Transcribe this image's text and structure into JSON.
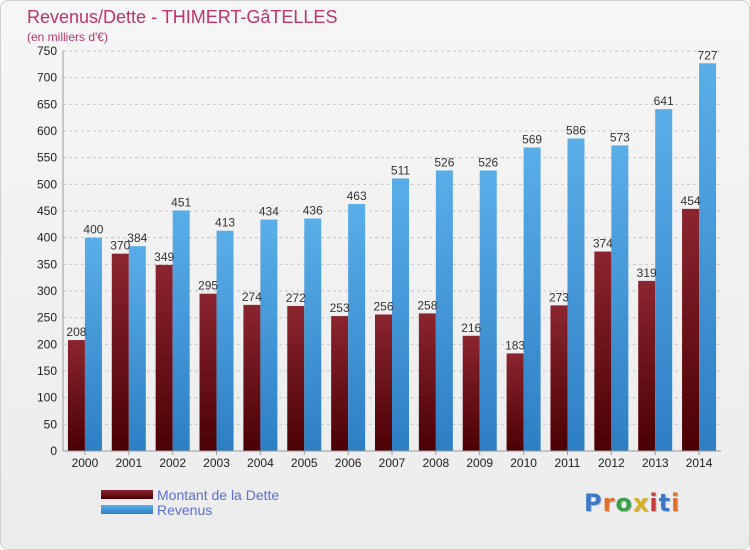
{
  "title": "Revenus/Dette - THIMERT-GâTELLES",
  "subtitle": "(en milliers d'€)",
  "brand": "Proxiti",
  "colors": {
    "dette_top": "#8b2530",
    "dette_bottom": "#4a0004",
    "revenus_top": "#5aaee8",
    "revenus_bottom": "#2e7ec4",
    "grid": "#c8c8c8",
    "title": "#c0336b",
    "legend_text": "#5a6fe0"
  },
  "chart_data": {
    "type": "bar",
    "categories": [
      "2000",
      "2001",
      "2002",
      "2003",
      "2004",
      "2005",
      "2006",
      "2007",
      "2008",
      "2009",
      "2010",
      "2011",
      "2012",
      "2013",
      "2014"
    ],
    "series": [
      {
        "name": "Montant de la Dette",
        "values": [
          208,
          370,
          349,
          295,
          274,
          272,
          253,
          256,
          258,
          216,
          183,
          273,
          374,
          319,
          454
        ]
      },
      {
        "name": "Revenus",
        "values": [
          400,
          384,
          451,
          413,
          434,
          436,
          463,
          511,
          526,
          526,
          569,
          586,
          573,
          641,
          727
        ]
      }
    ],
    "title": "Revenus/Dette - THIMERT-GâTELLES",
    "subtitle": "(en milliers d'€)",
    "ylim": [
      0,
      750
    ],
    "yticks": [
      0,
      50,
      100,
      150,
      200,
      250,
      300,
      350,
      400,
      450,
      500,
      550,
      600,
      650,
      700,
      750
    ],
    "grid": true,
    "legend": "bottom-left"
  }
}
